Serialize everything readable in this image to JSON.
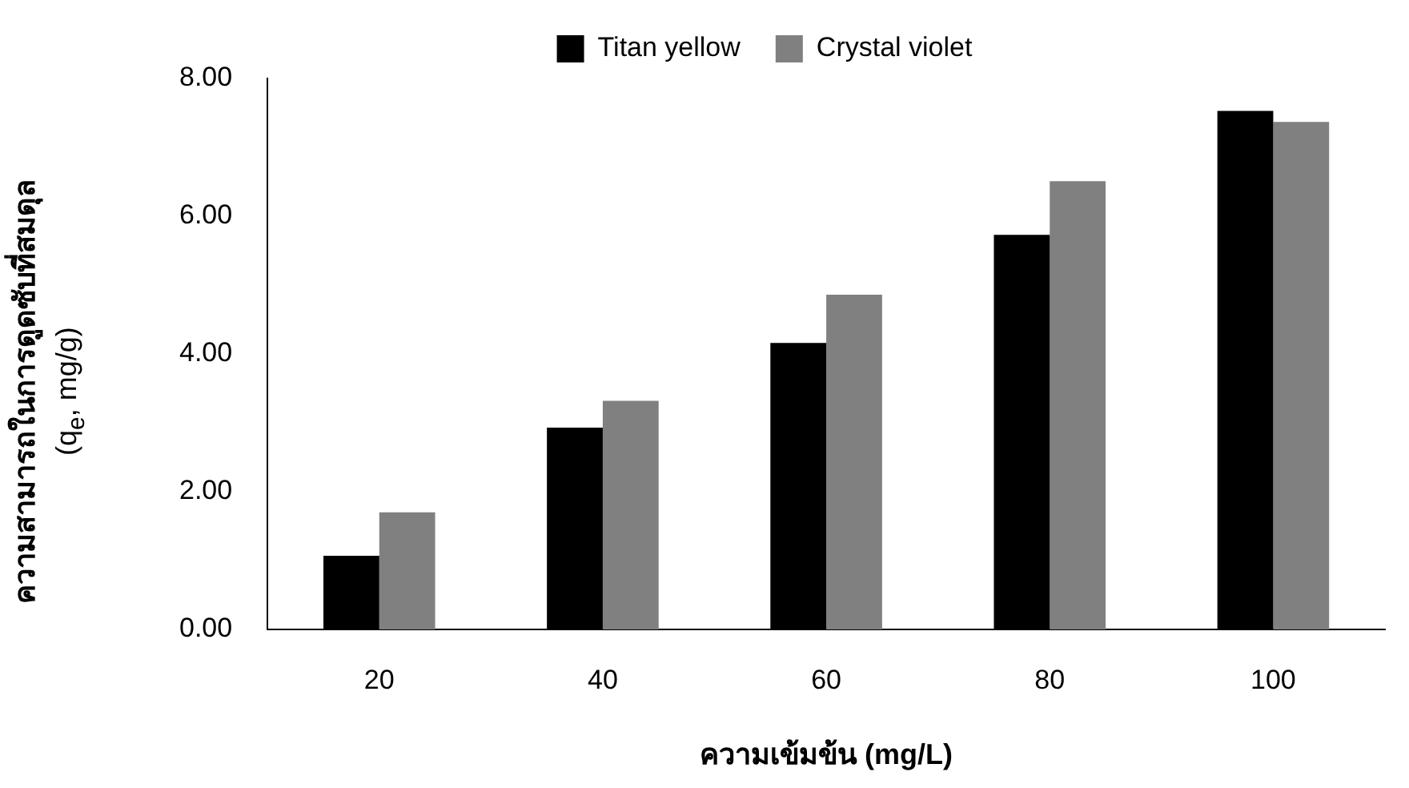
{
  "chart_data": {
    "type": "bar",
    "xlabel": "ความเข้มข้น (mg/L)",
    "ylabel": "ความสามารถในการดูดซับที่สมดุล\n(q$_{e}$, mg/g)",
    "categories": [
      "20",
      "40",
      "60",
      "80",
      "100"
    ],
    "series": [
      {
        "name": "Titan yellow",
        "color": "#000000",
        "values": [
          1.07,
          2.93,
          4.16,
          5.73,
          7.53
        ]
      },
      {
        "name": "Crystal violet",
        "color": "#808080",
        "values": [
          1.7,
          3.32,
          4.86,
          6.51,
          7.37
        ]
      }
    ],
    "ylim": [
      0,
      8
    ],
    "yticks": [
      {
        "value": 0,
        "label": "0.00"
      },
      {
        "value": 2,
        "label": "2.00"
      },
      {
        "value": 4,
        "label": "4.00"
      },
      {
        "value": 6,
        "label": "6.00"
      },
      {
        "value": 8,
        "label": "8.00"
      }
    ],
    "grid": false,
    "legend": "top"
  }
}
